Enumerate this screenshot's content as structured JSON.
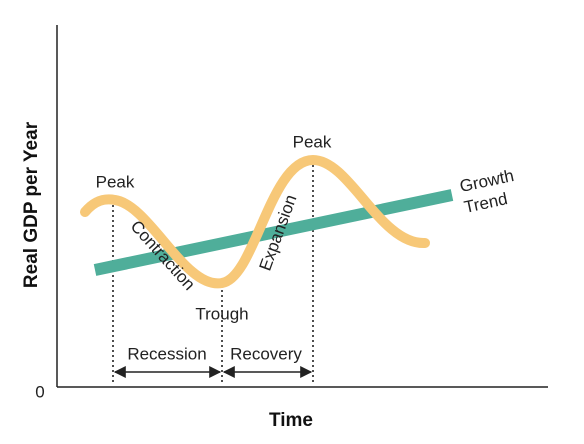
{
  "axes": {
    "y_label": "Real GDP per Year",
    "x_label": "Time",
    "origin": "0"
  },
  "labels": {
    "peak_1": "Peak",
    "peak_2": "Peak",
    "trough": "Trough",
    "contraction": "Contraction",
    "expansion": "Expansion",
    "growth": "Growth",
    "trend": "Trend",
    "recession": "Recession",
    "recovery": "Recovery"
  }
}
